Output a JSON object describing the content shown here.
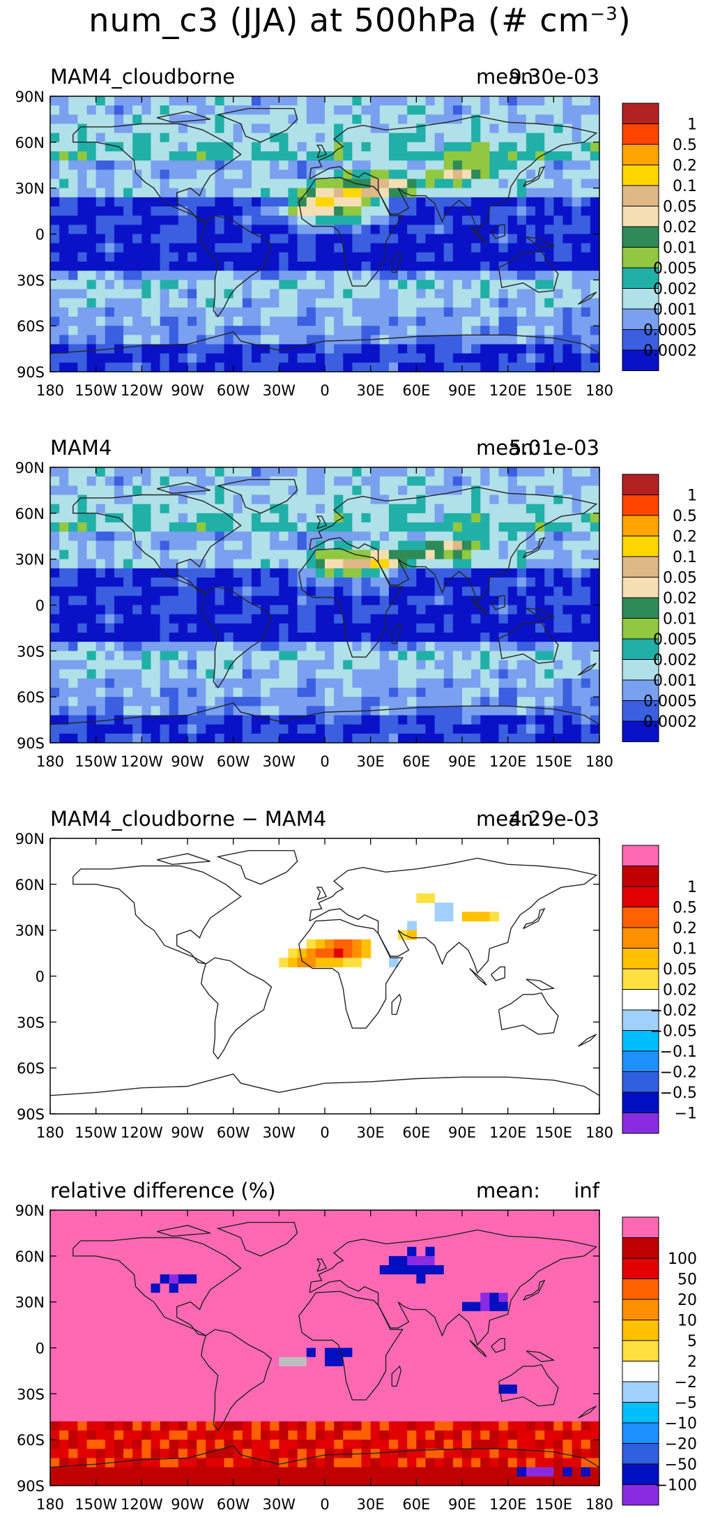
{
  "title": {
    "main": "num_c3 (JJA) at 500hPa (# cm",
    "exponent": "−3",
    "tail": ")"
  },
  "colors": {
    "abs": [
      "#0a12c8",
      "#3a5fe0",
      "#7aa0f0",
      "#b0e0e8",
      "#20b0a8",
      "#90c840",
      "#2e8b57",
      "#f5deb3",
      "#deb887",
      "#ffd700",
      "#ffa500",
      "#ff4500",
      "#b22222"
    ],
    "diff": [
      "#8a2be2",
      "#0010c0",
      "#3060e0",
      "#1e90ff",
      "#00bfff",
      "#a0d0ff",
      "#ffffff",
      "#ffe040",
      "#ffc000",
      "#ff9000",
      "#ff6000",
      "#e00000",
      "#c00000",
      "#ff69b4"
    ],
    "land": "#222222",
    "missing": "#bebebe"
  },
  "chart_data": [
    {
      "type": "heatmap",
      "title": "MAM4_cloudborne",
      "mean_label": "mean:",
      "mean_value": "9.30e-03",
      "x_ticks": [
        "180",
        "150W",
        "120W",
        "90W",
        "60W",
        "30W",
        "0",
        "30E",
        "60E",
        "90E",
        "120E",
        "150E",
        "180"
      ],
      "y_ticks": [
        "90N",
        "60N",
        "30N",
        "0",
        "30S",
        "60S",
        "90S"
      ],
      "xlim": [
        -180,
        180
      ],
      "ylim": [
        -90,
        90
      ],
      "colorbar": [
        "0.0002",
        "0.0005",
        "0.001",
        "0.002",
        "0.005",
        "0.01",
        "0.02",
        "0.05",
        "0.1",
        "0.2",
        "0.5",
        "1"
      ],
      "palette": "abs"
    },
    {
      "type": "heatmap",
      "title": "MAM4",
      "mean_label": "mean:",
      "mean_value": "5.01e-03",
      "x_ticks": [
        "180",
        "150W",
        "120W",
        "90W",
        "60W",
        "30W",
        "0",
        "30E",
        "60E",
        "90E",
        "120E",
        "150E",
        "180"
      ],
      "y_ticks": [
        "90N",
        "60N",
        "30N",
        "0",
        "30S",
        "60S",
        "90S"
      ],
      "xlim": [
        -180,
        180
      ],
      "ylim": [
        -90,
        90
      ],
      "colorbar": [
        "0.0002",
        "0.0005",
        "0.001",
        "0.002",
        "0.005",
        "0.01",
        "0.02",
        "0.05",
        "0.1",
        "0.2",
        "0.5",
        "1"
      ],
      "palette": "abs"
    },
    {
      "type": "heatmap",
      "title": "MAM4_cloudborne − MAM4",
      "mean_label": "mean:",
      "mean_value": "4.29e-03",
      "x_ticks": [
        "180",
        "150W",
        "120W",
        "90W",
        "60W",
        "30W",
        "0",
        "30E",
        "60E",
        "90E",
        "120E",
        "150E",
        "180"
      ],
      "y_ticks": [
        "90N",
        "60N",
        "30N",
        "0",
        "30S",
        "60S",
        "90S"
      ],
      "xlim": [
        -180,
        180
      ],
      "ylim": [
        -90,
        90
      ],
      "colorbar": [
        "−1",
        "−0.5",
        "−0.2",
        "−0.1",
        "−0.05",
        "−0.02",
        "0.02",
        "0.05",
        "0.1",
        "0.2",
        "0.5",
        "1"
      ],
      "palette": "diff"
    },
    {
      "type": "heatmap",
      "title": "relative difference (%)",
      "mean_label": "mean:",
      "mean_value": "inf",
      "x_ticks": [
        "180",
        "150W",
        "120W",
        "90W",
        "60W",
        "30W",
        "0",
        "30E",
        "60E",
        "90E",
        "120E",
        "150E",
        "180"
      ],
      "y_ticks": [
        "90N",
        "60N",
        "30N",
        "0",
        "30S",
        "60S",
        "90S"
      ],
      "xlim": [
        -180,
        180
      ],
      "ylim": [
        -90,
        90
      ],
      "colorbar": [
        "−100",
        "−50",
        "−20",
        "−10",
        "−5",
        "−2",
        "2",
        "5",
        "10",
        "20",
        "50",
        "100"
      ],
      "palette": "diff"
    }
  ]
}
